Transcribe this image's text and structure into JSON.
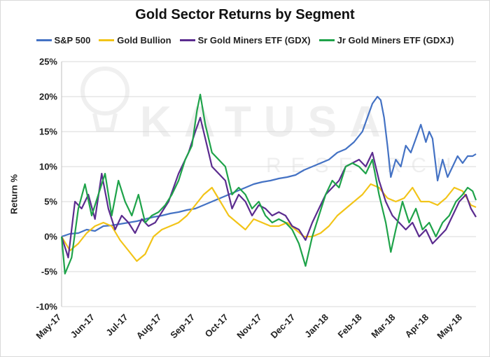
{
  "chart_data": {
    "type": "line",
    "title": "Gold Sector Returns by Segment",
    "ylabel": "Return %",
    "xlabel": "",
    "x_tick_labels": [
      "May-17",
      "Jun-17",
      "Jul-17",
      "Aug-17",
      "Sep-17",
      "Oct-17",
      "Nov-17",
      "Dec-17",
      "Jan-18",
      "Feb-18",
      "Mar-18",
      "Apr-18",
      "May-18"
    ],
    "y_tick_labels": [
      "25%",
      "20%",
      "15%",
      "10%",
      "5%",
      "0%",
      "-5%",
      "-10%"
    ],
    "ylim": [
      -10,
      25
    ],
    "xlim": [
      0,
      12.4
    ],
    "grid": "horizontal",
    "legend_position": "top",
    "watermark": {
      "text": "KATUSA",
      "subtext": "RESEARCH"
    },
    "series": [
      {
        "name": "S&P 500",
        "color": "#4472C4",
        "points": [
          [
            0,
            0
          ],
          [
            0.25,
            0.4
          ],
          [
            0.5,
            0.5
          ],
          [
            0.75,
            1.0
          ],
          [
            1,
            0.8
          ],
          [
            1.25,
            1.5
          ],
          [
            1.5,
            1.6
          ],
          [
            1.75,
            1.8
          ],
          [
            2,
            2.0
          ],
          [
            2.25,
            2.2
          ],
          [
            2.5,
            2.5
          ],
          [
            2.75,
            2.8
          ],
          [
            3,
            3.0
          ],
          [
            3.25,
            3.3
          ],
          [
            3.5,
            3.5
          ],
          [
            3.75,
            3.8
          ],
          [
            4,
            4.0
          ],
          [
            4.25,
            4.5
          ],
          [
            4.5,
            5.0
          ],
          [
            4.75,
            5.5
          ],
          [
            5,
            6.0
          ],
          [
            5.25,
            6.5
          ],
          [
            5.5,
            7.0
          ],
          [
            5.75,
            7.5
          ],
          [
            6,
            7.8
          ],
          [
            6.25,
            8.0
          ],
          [
            6.5,
            8.3
          ],
          [
            6.75,
            8.5
          ],
          [
            7,
            8.8
          ],
          [
            7.25,
            9.5
          ],
          [
            7.5,
            10.0
          ],
          [
            7.75,
            10.5
          ],
          [
            8,
            11.0
          ],
          [
            8.25,
            12.0
          ],
          [
            8.5,
            12.5
          ],
          [
            8.75,
            13.5
          ],
          [
            9,
            15.0
          ],
          [
            9.15,
            17.0
          ],
          [
            9.3,
            19.0
          ],
          [
            9.45,
            20.0
          ],
          [
            9.55,
            19.5
          ],
          [
            9.65,
            17.0
          ],
          [
            9.75,
            13.0
          ],
          [
            9.85,
            8.5
          ],
          [
            10,
            11.0
          ],
          [
            10.15,
            10.0
          ],
          [
            10.3,
            13.0
          ],
          [
            10.45,
            12.0
          ],
          [
            10.6,
            14.0
          ],
          [
            10.75,
            16.0
          ],
          [
            10.9,
            13.5
          ],
          [
            11,
            15.0
          ],
          [
            11.1,
            14.0
          ],
          [
            11.25,
            8.0
          ],
          [
            11.4,
            11.0
          ],
          [
            11.55,
            8.5
          ],
          [
            11.7,
            10.0
          ],
          [
            11.85,
            11.5
          ],
          [
            12,
            10.5
          ],
          [
            12.15,
            11.5
          ],
          [
            12.3,
            11.5
          ],
          [
            12.4,
            11.8
          ]
        ]
      },
      {
        "name": "Gold Bullion",
        "color": "#F2C418",
        "points": [
          [
            0,
            0
          ],
          [
            0.25,
            -2.0
          ],
          [
            0.5,
            -1.0
          ],
          [
            0.75,
            0.5
          ],
          [
            1,
            1.5
          ],
          [
            1.25,
            2.0
          ],
          [
            1.5,
            1.5
          ],
          [
            1.75,
            -0.5
          ],
          [
            2,
            -2.0
          ],
          [
            2.25,
            -3.5
          ],
          [
            2.5,
            -2.5
          ],
          [
            2.75,
            0
          ],
          [
            3,
            1.0
          ],
          [
            3.25,
            1.5
          ],
          [
            3.5,
            2.0
          ],
          [
            3.75,
            3.0
          ],
          [
            4,
            4.5
          ],
          [
            4.25,
            6.0
          ],
          [
            4.5,
            7.0
          ],
          [
            4.75,
            5.0
          ],
          [
            5,
            3.0
          ],
          [
            5.25,
            2.0
          ],
          [
            5.5,
            1.0
          ],
          [
            5.75,
            2.5
          ],
          [
            6,
            2.0
          ],
          [
            6.25,
            1.5
          ],
          [
            6.5,
            1.5
          ],
          [
            6.75,
            2.0
          ],
          [
            7,
            1.0
          ],
          [
            7.25,
            0
          ],
          [
            7.5,
            0
          ],
          [
            7.75,
            0.5
          ],
          [
            8,
            1.5
          ],
          [
            8.25,
            3.0
          ],
          [
            8.5,
            4.0
          ],
          [
            8.75,
            5.0
          ],
          [
            9,
            6.0
          ],
          [
            9.25,
            7.5
          ],
          [
            9.5,
            7.0
          ],
          [
            9.75,
            5.5
          ],
          [
            10,
            5.0
          ],
          [
            10.25,
            5.5
          ],
          [
            10.5,
            7.0
          ],
          [
            10.75,
            5.0
          ],
          [
            11,
            5.0
          ],
          [
            11.25,
            4.5
          ],
          [
            11.5,
            5.5
          ],
          [
            11.75,
            7.0
          ],
          [
            12,
            6.5
          ],
          [
            12.25,
            4.5
          ],
          [
            12.4,
            4.2
          ]
        ]
      },
      {
        "name": "Sr Gold Miners ETF (GDX)",
        "color": "#5B2C8F",
        "points": [
          [
            0,
            0
          ],
          [
            0.2,
            -3.0
          ],
          [
            0.4,
            5.0
          ],
          [
            0.6,
            4.0
          ],
          [
            0.8,
            6.0
          ],
          [
            1,
            2.5
          ],
          [
            1.2,
            9.0
          ],
          [
            1.4,
            4.0
          ],
          [
            1.6,
            1.0
          ],
          [
            1.8,
            3.0
          ],
          [
            2,
            2.0
          ],
          [
            2.2,
            0.5
          ],
          [
            2.4,
            2.5
          ],
          [
            2.6,
            1.5
          ],
          [
            2.8,
            2.0
          ],
          [
            3,
            3.5
          ],
          [
            3.2,
            5.0
          ],
          [
            3.5,
            9.0
          ],
          [
            3.8,
            12.0
          ],
          [
            4,
            15.0
          ],
          [
            4.15,
            17.0
          ],
          [
            4.3,
            14.0
          ],
          [
            4.5,
            10.0
          ],
          [
            4.7,
            9.0
          ],
          [
            4.9,
            8.0
          ],
          [
            5.1,
            4.0
          ],
          [
            5.3,
            6.0
          ],
          [
            5.5,
            5.0
          ],
          [
            5.7,
            3.0
          ],
          [
            5.9,
            4.5
          ],
          [
            6.1,
            4.0
          ],
          [
            6.3,
            3.0
          ],
          [
            6.5,
            3.5
          ],
          [
            6.7,
            3.0
          ],
          [
            6.9,
            1.5
          ],
          [
            7.1,
            1.0
          ],
          [
            7.3,
            -0.5
          ],
          [
            7.5,
            2.0
          ],
          [
            7.7,
            4.0
          ],
          [
            7.9,
            6.0
          ],
          [
            8.1,
            7.0
          ],
          [
            8.3,
            8.0
          ],
          [
            8.5,
            10.0
          ],
          [
            8.7,
            10.5
          ],
          [
            8.9,
            11.0
          ],
          [
            9.1,
            10.0
          ],
          [
            9.3,
            12.0
          ],
          [
            9.5,
            8.0
          ],
          [
            9.7,
            5.0
          ],
          [
            9.9,
            3.0
          ],
          [
            10.1,
            2.0
          ],
          [
            10.3,
            1.0
          ],
          [
            10.5,
            2.0
          ],
          [
            10.7,
            0
          ],
          [
            10.9,
            1.0
          ],
          [
            11.1,
            -1.0
          ],
          [
            11.3,
            0
          ],
          [
            11.5,
            1.0
          ],
          [
            11.7,
            3.0
          ],
          [
            11.9,
            5.0
          ],
          [
            12.1,
            6.0
          ],
          [
            12.25,
            4.0
          ],
          [
            12.4,
            2.8
          ]
        ]
      },
      {
        "name": "Jr Gold Miners ETF (GDXJ)",
        "color": "#1FA34A",
        "points": [
          [
            0,
            0
          ],
          [
            0.1,
            -5.3
          ],
          [
            0.3,
            -3.0
          ],
          [
            0.5,
            4.0
          ],
          [
            0.7,
            7.5
          ],
          [
            0.9,
            3.0
          ],
          [
            1.1,
            6.0
          ],
          [
            1.3,
            9.0
          ],
          [
            1.5,
            3.0
          ],
          [
            1.7,
            8.0
          ],
          [
            1.9,
            5.0
          ],
          [
            2.1,
            3.0
          ],
          [
            2.3,
            6.0
          ],
          [
            2.5,
            2.0
          ],
          [
            2.7,
            3.0
          ],
          [
            2.9,
            3.5
          ],
          [
            3.1,
            4.5
          ],
          [
            3.3,
            6.0
          ],
          [
            3.5,
            8.0
          ],
          [
            3.7,
            11.0
          ],
          [
            3.9,
            13.0
          ],
          [
            4.05,
            18.0
          ],
          [
            4.15,
            20.3
          ],
          [
            4.3,
            16.0
          ],
          [
            4.5,
            12.0
          ],
          [
            4.7,
            11.0
          ],
          [
            4.9,
            10.0
          ],
          [
            5.1,
            6.0
          ],
          [
            5.3,
            7.0
          ],
          [
            5.5,
            6.0
          ],
          [
            5.7,
            4.0
          ],
          [
            5.9,
            5.0
          ],
          [
            6.1,
            3.0
          ],
          [
            6.3,
            2.0
          ],
          [
            6.5,
            2.5
          ],
          [
            6.7,
            2.0
          ],
          [
            6.9,
            1.0
          ],
          [
            7.1,
            -1.0
          ],
          [
            7.3,
            -4.2
          ],
          [
            7.5,
            0
          ],
          [
            7.7,
            3.0
          ],
          [
            7.9,
            6.0
          ],
          [
            8.1,
            8.0
          ],
          [
            8.3,
            7.0
          ],
          [
            8.5,
            10.0
          ],
          [
            8.7,
            10.5
          ],
          [
            8.9,
            10.0
          ],
          [
            9.1,
            9.0
          ],
          [
            9.3,
            11.0
          ],
          [
            9.5,
            6.0
          ],
          [
            9.7,
            2.0
          ],
          [
            9.85,
            -2.2
          ],
          [
            10,
            1.0
          ],
          [
            10.2,
            5.0
          ],
          [
            10.4,
            2.0
          ],
          [
            10.6,
            4.0
          ],
          [
            10.8,
            1.0
          ],
          [
            11,
            2.0
          ],
          [
            11.2,
            0
          ],
          [
            11.4,
            2.0
          ],
          [
            11.6,
            3.0
          ],
          [
            11.8,
            5.0
          ],
          [
            12,
            6.0
          ],
          [
            12.15,
            7.0
          ],
          [
            12.3,
            6.5
          ],
          [
            12.4,
            5.2
          ]
        ]
      }
    ]
  }
}
